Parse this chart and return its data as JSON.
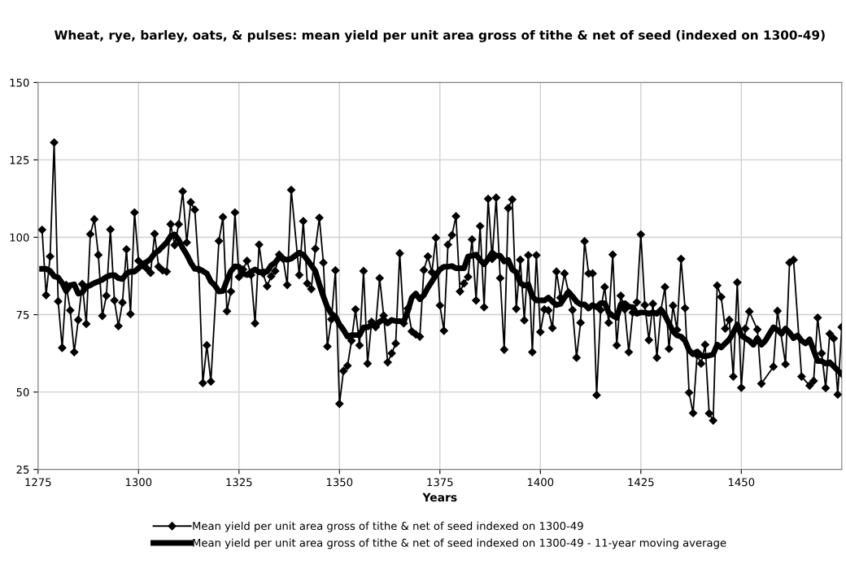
{
  "chart_data": {
    "type": "line",
    "title": "Wheat, rye, barley, oats, & pulses: mean yield per unit area gross of tithe & net of seed (indexed on 1300-49)",
    "xlabel": "Years",
    "xlim": [
      1275,
      1475
    ],
    "xticks": [
      1275,
      1300,
      1325,
      1350,
      1375,
      1400,
      1425,
      1450
    ],
    "ylim": [
      25,
      150
    ],
    "yticks": [
      25,
      50,
      75,
      100,
      125,
      150
    ],
    "grid": true,
    "legend": "bottom",
    "series": [
      {
        "name": "Mean yield per unit area gross of tithe & net of seed indexed on 1300-49",
        "color": "#000000",
        "marker": "diamond",
        "x": [
          1276,
          1277,
          1278,
          1279,
          1280,
          1281,
          1282,
          1283,
          1284,
          1285,
          1286,
          1287,
          1288,
          1289,
          1290,
          1291,
          1292,
          1293,
          1294,
          1295,
          1296,
          1297,
          1298,
          1299,
          1300,
          1301,
          1302,
          1303,
          1304,
          1305,
          1306,
          1307,
          1308,
          1309,
          1310,
          1311,
          1312,
          1313,
          1314,
          1315,
          1316,
          1317,
          1318,
          1320,
          1321,
          1322,
          1323,
          1324,
          1325,
          1326,
          1327,
          1328,
          1329,
          1330,
          1331,
          1332,
          1333,
          1334,
          1335,
          1336,
          1337,
          1338,
          1340,
          1341,
          1342,
          1343,
          1344,
          1345,
          1346,
          1347,
          1348,
          1349,
          1350,
          1351,
          1352,
          1353,
          1354,
          1355,
          1356,
          1357,
          1358,
          1359,
          1360,
          1361,
          1362,
          1363,
          1364,
          1365,
          1366,
          1367,
          1368,
          1369,
          1370,
          1371,
          1372,
          1373,
          1374,
          1375,
          1376,
          1377,
          1378,
          1379,
          1380,
          1381,
          1382,
          1383,
          1384,
          1385,
          1386,
          1387,
          1388,
          1389,
          1390,
          1391,
          1392,
          1393,
          1394,
          1395,
          1396,
          1397,
          1398,
          1399,
          1400,
          1401,
          1402,
          1403,
          1404,
          1405,
          1406,
          1407,
          1408,
          1409,
          1410,
          1411,
          1412,
          1413,
          1414,
          1415,
          1416,
          1417,
          1418,
          1419,
          1420,
          1421,
          1422,
          1423,
          1424,
          1425,
          1426,
          1427,
          1428,
          1429,
          1430,
          1431,
          1432,
          1433,
          1434,
          1435,
          1436,
          1437,
          1438,
          1439,
          1440,
          1441,
          1442,
          1443,
          1444,
          1445,
          1446,
          1447,
          1448,
          1449,
          1450,
          1451,
          1452,
          1454,
          1455,
          1458,
          1459,
          1461,
          1462,
          1463,
          1465,
          1467,
          1468,
          1469,
          1470,
          1471,
          1472,
          1473,
          1474,
          1475
        ],
        "values": [
          102.4,
          81.3,
          93.8,
          130.6,
          79.3,
          64.3,
          84.6,
          76.4,
          62.9,
          73.3,
          84.9,
          72.0,
          101.0,
          105.8,
          94.3,
          74.6,
          81.1,
          102.5,
          79.6,
          71.3,
          78.9,
          96.1,
          75.2,
          108.0,
          92.4,
          91,
          90,
          88.5,
          101.1,
          90.5,
          89.3,
          88.9,
          104.2,
          97.5,
          104.2,
          114.8,
          98.3,
          111.3,
          108.9,
          89.6,
          52.9,
          65.1,
          53.4,
          98.8,
          106.5,
          76.1,
          82.5,
          108.0,
          87.2,
          89.6,
          92.4,
          87.8,
          72.2,
          97.6,
          88.3,
          84.2,
          87.4,
          89.1,
          94.4,
          93,
          84.6,
          115.3,
          87.8,
          105.2,
          85.1,
          83.3,
          96.3,
          106.3,
          91.8,
          64.7,
          73.5,
          89.3,
          46.2,
          56.8,
          58.5,
          66.6,
          76.7,
          65.1,
          89.1,
          59.2,
          72.7,
          71,
          86.8,
          74.7,
          59.6,
          62.5,
          65.7,
          94.8,
          72.2,
          77.0,
          69.6,
          68.6,
          67.9,
          89.4,
          93.8,
          88.7,
          99.8,
          78.0,
          69.8,
          97.6,
          100.7,
          106.8,
          82.5,
          85.1,
          87.2,
          99.3,
          79.6,
          103.6,
          77.4,
          112.4,
          93.0,
          112.8,
          86.8,
          63.7,
          109.4,
          112.2,
          76.9,
          92.7,
          73.2,
          94.2,
          62.9,
          94.2,
          69.4,
          76.7,
          76.4,
          70.7,
          88.9,
          80.5,
          88.3,
          82.2,
          76.5,
          61.1,
          72.4,
          98.7,
          88.3,
          88.3,
          49.0,
          76.5,
          83.9,
          72.4,
          94.4,
          65.1,
          81.1,
          76.7,
          62.9,
          75.7,
          79.0,
          100.9,
          78.1,
          66.8,
          78.5,
          61.1,
          76.4,
          83.9,
          64.0,
          77.9,
          70.1,
          93.0,
          77.1,
          49.8,
          43.2,
          62,
          59.2,
          65.3,
          43.1,
          40.8,
          84.4,
          80.7,
          70.5,
          73.3,
          55.0,
          85.4,
          51.4,
          70.5,
          76.0,
          70.2,
          52.7,
          58.2,
          76.2,
          59.0,
          91.8,
          92.7,
          55.0,
          52.1,
          53.6,
          74.0,
          62.5,
          51.3,
          68.8,
          67.3,
          49.2,
          71
        ]
      },
      {
        "name": "Mean yield per unit area gross of tithe & net of seed indexed on 1300-49 - 11-year moving average",
        "color": "#000000",
        "marker": "none",
        "x": [
          1276,
          1277,
          1278,
          1279,
          1280,
          1281,
          1282,
          1283,
          1284,
          1285,
          1286,
          1287,
          1288,
          1289,
          1290,
          1291,
          1292,
          1293,
          1294,
          1295,
          1296,
          1297,
          1298,
          1299,
          1300,
          1301,
          1302,
          1303,
          1304,
          1305,
          1306,
          1307,
          1308,
          1309,
          1310,
          1311,
          1312,
          1313,
          1314,
          1315,
          1316,
          1317,
          1318,
          1319,
          1320,
          1321,
          1322,
          1323,
          1324,
          1325,
          1326,
          1327,
          1328,
          1329,
          1330,
          1331,
          1332,
          1333,
          1334,
          1335,
          1336,
          1337,
          1338,
          1339,
          1340,
          1341,
          1342,
          1343,
          1344,
          1345,
          1346,
          1347,
          1348,
          1349,
          1350,
          1351,
          1352,
          1353,
          1354,
          1355,
          1356,
          1357,
          1358,
          1359,
          1360,
          1361,
          1362,
          1363,
          1364,
          1365,
          1366,
          1367,
          1368,
          1369,
          1370,
          1371,
          1372,
          1373,
          1374,
          1375,
          1376,
          1377,
          1378,
          1379,
          1380,
          1381,
          1382,
          1383,
          1384,
          1385,
          1386,
          1387,
          1388,
          1389,
          1390,
          1391,
          1392,
          1393,
          1394,
          1395,
          1396,
          1397,
          1398,
          1399,
          1400,
          1401,
          1402,
          1403,
          1404,
          1405,
          1406,
          1407,
          1408,
          1409,
          1410,
          1411,
          1412,
          1413,
          1414,
          1415,
          1416,
          1417,
          1418,
          1419,
          1420,
          1421,
          1422,
          1423,
          1424,
          1425,
          1426,
          1427,
          1428,
          1429,
          1430,
          1431,
          1432,
          1433,
          1434,
          1435,
          1436,
          1437,
          1438,
          1439,
          1440,
          1441,
          1442,
          1443,
          1444,
          1445,
          1446,
          1447,
          1448,
          1449,
          1450,
          1451,
          1452,
          1453,
          1454,
          1455,
          1456,
          1457,
          1458,
          1459,
          1460,
          1461,
          1462,
          1463,
          1464,
          1465,
          1466,
          1467,
          1468,
          1469,
          1470,
          1471,
          1472,
          1473,
          1474,
          1475
        ],
        "values": [
          89.8,
          89.8,
          89.1,
          87.4,
          87,
          85.2,
          82.6,
          84.5,
          84.8,
          81.8,
          82.2,
          84,
          84.5,
          85.2,
          85.7,
          86.3,
          87.2,
          87.7,
          87.8,
          86.8,
          86.5,
          88.3,
          88.9,
          88.9,
          90,
          91.3,
          92,
          93,
          94.8,
          95.7,
          97,
          98.3,
          100.4,
          100.9,
          99.1,
          96.5,
          94.4,
          91.8,
          89.8,
          89.8,
          89.1,
          88.3,
          85.7,
          84.4,
          82.5,
          82.6,
          86.1,
          89.1,
          90.6,
          90.5,
          88.3,
          87.8,
          88.9,
          89.6,
          88.7,
          88.9,
          88.9,
          90.9,
          91.8,
          93.5,
          93.1,
          92.7,
          93.1,
          94.1,
          95,
          94.4,
          92.7,
          90.9,
          89.1,
          84.8,
          80.9,
          77.4,
          75.3,
          74.4,
          71.8,
          70.1,
          67.9,
          68.4,
          68.4,
          68.4,
          70.9,
          70.9,
          71.8,
          71.4,
          72.7,
          73.5,
          72.2,
          73.3,
          72.9,
          72.9,
          72.7,
          76.1,
          80.5,
          81.8,
          80,
          81.3,
          83.7,
          85.7,
          87.8,
          89.6,
          90.5,
          90.5,
          90.7,
          90,
          90,
          90,
          93.8,
          94,
          94.4,
          92.7,
          91.3,
          93,
          95,
          94,
          94,
          92.2,
          92.7,
          89.6,
          88.7,
          85.2,
          84.4,
          84.8,
          80.9,
          79.6,
          79.6,
          79.6,
          80.5,
          79.2,
          78.1,
          78.5,
          80.5,
          82.2,
          80.9,
          79.2,
          78.3,
          78.3,
          77,
          78.1,
          77.4,
          78.7,
          78.7,
          75.7,
          74.7,
          74,
          78.3,
          78.7,
          77.6,
          77.4,
          75.3,
          75.7,
          75.7,
          75.3,
          75.7,
          75.3,
          76.6,
          74.8,
          72.2,
          69.6,
          68.3,
          67.9,
          66.6,
          63.5,
          62.2,
          63.1,
          61.8,
          61.5,
          61.8,
          62.2,
          65.3,
          64.4,
          65.7,
          67,
          69.2,
          71.8,
          68.3,
          67.4,
          66.6,
          65.3,
          67.4,
          65.3,
          66.6,
          68.8,
          70.9,
          70.1,
          68.8,
          70.5,
          69.2,
          67.4,
          68.3,
          66.6,
          65.7,
          67,
          63.5,
          60,
          60,
          59.2,
          59.6,
          58.3,
          57,
          55.7
        ]
      }
    ]
  }
}
